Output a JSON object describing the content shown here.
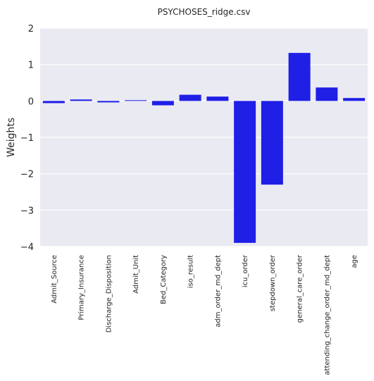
{
  "chart_data": {
    "type": "bar",
    "title": "PSYCHOSES_ridge.csv",
    "xlabel": "",
    "ylabel": "Weights",
    "ylim": [
      -4,
      2
    ],
    "yticks": [
      2,
      1,
      0,
      -1,
      -2,
      -3,
      -4
    ],
    "grid": true,
    "bar_color": "#1f1fe6",
    "background_color": "#eaeaf2",
    "categories": [
      "Admit_Source",
      "Primary_Insurance",
      "Discharge_Disposition",
      "Admit_Unit",
      "Bed_Category",
      "iso_result",
      "adm_order_md_dept",
      "icu_order",
      "stepdown_order",
      "general_care_order",
      "attending_change_order_md_dept",
      "age"
    ],
    "values": [
      -0.06,
      0.04,
      -0.04,
      0.02,
      -0.12,
      0.17,
      0.12,
      -3.9,
      -2.3,
      1.32,
      0.37,
      0.08
    ]
  }
}
